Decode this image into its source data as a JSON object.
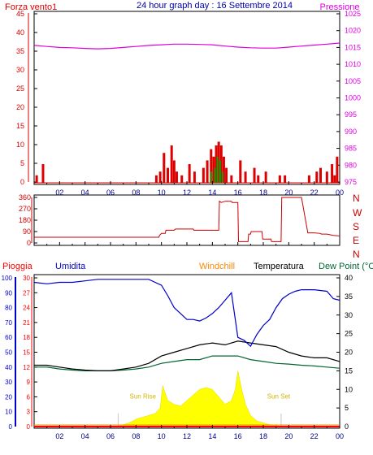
{
  "header": {
    "left": "Forza vento1",
    "title": "24 hour graph day : 16 Settembre 2014",
    "right": "Pressione"
  },
  "colors": {
    "wind": "#dd0000",
    "pressure": "#dd00dd",
    "direction": "#cc0000",
    "humidity": "#0000cc",
    "temperature": "#000000",
    "dewpoint": "#006633",
    "sun": "#ffff00",
    "sun_label": "#d4b400",
    "windchill": "#ff8800",
    "rain": "#ff0000",
    "frame": "#000000"
  },
  "x_ticks": [
    "02",
    "04",
    "06",
    "08",
    "10",
    "12",
    "14",
    "16",
    "18",
    "20",
    "22",
    "00"
  ],
  "chart_data": [
    {
      "type": "line",
      "name": "wind-pressure",
      "x_range_hours": [
        0,
        24
      ],
      "left_axis": {
        "label": "Forza vento1",
        "ticks": [
          "0",
          "5",
          "10",
          "15",
          "20",
          "25",
          "30",
          "35",
          "40",
          "45"
        ],
        "range": [
          0,
          45
        ]
      },
      "right_axis": {
        "label": "Pressione",
        "ticks": [
          "975",
          "980",
          "985",
          "990",
          "995",
          "1000",
          "1005",
          "1010",
          "1015",
          "1020",
          "1025"
        ],
        "range": [
          975,
          1025
        ]
      },
      "pressure": {
        "x": [
          0,
          1,
          2,
          3,
          4,
          5,
          6,
          7,
          8,
          9,
          10,
          11,
          12,
          13,
          14,
          15,
          16,
          17,
          18,
          19,
          20,
          21,
          22,
          23,
          24
        ],
        "y": [
          1015.6,
          1015.3,
          1015.0,
          1014.9,
          1014.7,
          1014.6,
          1014.7,
          1015.0,
          1015.3,
          1015.6,
          1015.8,
          1016.0,
          1016.0,
          1015.9,
          1015.8,
          1015.4,
          1015.1,
          1014.9,
          1014.8,
          1014.8,
          1015.1,
          1015.4,
          1015.7,
          1016.0,
          1016.3
        ]
      },
      "wind_bars": {
        "x": [
          0.2,
          0.7,
          9.6,
          9.9,
          10.2,
          10.5,
          10.8,
          11.0,
          11.2,
          11.6,
          12.2,
          12.6,
          13.3,
          13.6,
          13.9,
          14.1,
          14.3,
          14.5,
          14.7,
          14.9,
          15.1,
          15.5,
          16.2,
          16.6,
          17.3,
          17.6,
          18.2,
          19.3,
          19.7,
          21.6,
          22.2,
          22.5,
          23.0,
          23.4,
          23.6,
          23.8
        ],
        "y": [
          2,
          5,
          2,
          3,
          8,
          4,
          10,
          6,
          3,
          2,
          5,
          3,
          4,
          6,
          9,
          7,
          10,
          11,
          10,
          7,
          4,
          2,
          6,
          3,
          4,
          2,
          3,
          2,
          2,
          2,
          3,
          4,
          3,
          5,
          2,
          7
        ]
      },
      "gust_bars": {
        "x": [
          13.9,
          14.2,
          14.4,
          14.6,
          14.8
        ],
        "y": [
          3,
          4,
          7,
          6,
          3
        ]
      }
    },
    {
      "type": "line",
      "name": "wind-direction",
      "x_range_hours": [
        0,
        24
      ],
      "left_axis": {
        "ticks": [
          "0",
          "90",
          "180",
          "270",
          "360"
        ],
        "range": [
          0,
          360
        ]
      },
      "right_axis": {
        "ticks": [
          "N",
          "W",
          "S",
          "E",
          "N"
        ]
      },
      "direction": {
        "x": [
          0,
          9.8,
          9.85,
          10.0,
          10.3,
          10.35,
          11.0,
          11.1,
          12.5,
          12.55,
          12.8,
          12.85,
          14.5,
          14.55,
          14.7,
          15.0,
          15.5,
          15.55,
          16.0,
          16.05,
          16.8,
          16.85,
          17.0,
          17.05,
          17.9,
          17.95,
          18.6,
          18.65,
          19.4,
          19.45,
          21.0,
          21.5,
          22.0,
          22.5,
          22.55,
          23.0,
          23.5,
          24.0
        ],
        "y": [
          45,
          45,
          60,
          75,
          75,
          100,
          100,
          110,
          110,
          100,
          100,
          100,
          100,
          330,
          320,
          330,
          330,
          320,
          320,
          10,
          10,
          70,
          70,
          90,
          90,
          30,
          30,
          10,
          10,
          360,
          360,
          80,
          80,
          75,
          70,
          70,
          60,
          55
        ]
      }
    },
    {
      "type": "line",
      "name": "temperature-humidity",
      "x_range_hours": [
        0,
        24
      ],
      "legend": [
        "Pioggia",
        "Umidita",
        "Windchill",
        "Temperatura",
        "Dew Point (°C"
      ],
      "axis_humidity": {
        "label": "Umidita",
        "ticks": [
          "0",
          "10",
          "20",
          "30",
          "40",
          "50",
          "60",
          "70",
          "80",
          "90",
          "100"
        ],
        "range": [
          0,
          100
        ]
      },
      "axis_rain": {
        "label": "Pioggia",
        "ticks": [
          "0",
          "3",
          "6",
          "9",
          "12",
          "15",
          "18",
          "21",
          "24",
          "27",
          "30"
        ],
        "range": [
          0,
          30
        ]
      },
      "axis_temperature": {
        "ticks": [
          "0",
          "5",
          "10",
          "15",
          "20",
          "25",
          "30",
          "35",
          "40"
        ],
        "range": [
          0,
          40
        ]
      },
      "humidity": {
        "x": [
          0,
          1,
          2,
          3,
          4,
          5,
          6,
          7,
          8,
          9,
          10,
          10.5,
          11,
          11.5,
          12,
          12.5,
          13,
          13.5,
          14,
          14.5,
          15,
          15.5,
          16,
          16.5,
          17,
          17.5,
          18,
          18.5,
          19,
          19.5,
          20,
          20.5,
          21,
          22,
          23,
          23.5,
          24
        ],
        "y": [
          97,
          96,
          97,
          97,
          98,
          99,
          99,
          99,
          99,
          99,
          95,
          88,
          80,
          76,
          72,
          72,
          71,
          73,
          76,
          80,
          85,
          90,
          60,
          58,
          54,
          62,
          68,
          72,
          80,
          86,
          89,
          91,
          92,
          92,
          91,
          86,
          85
        ]
      },
      "temperature": {
        "x": [
          0,
          1,
          2,
          3,
          4,
          5,
          6,
          7,
          8,
          9,
          10,
          11,
          12,
          13,
          14,
          15,
          16,
          17,
          18,
          19,
          20,
          21,
          22,
          23,
          24
        ],
        "y": [
          16.5,
          16.5,
          16.0,
          15.5,
          15.2,
          15.0,
          15.0,
          15.5,
          16.0,
          17.0,
          19.0,
          20.0,
          21.0,
          22.0,
          22.5,
          22.0,
          23.0,
          22.5,
          22.0,
          21.5,
          20.0,
          19.0,
          18.5,
          18.5,
          17.5
        ]
      },
      "dewpoint": {
        "x": [
          0,
          1,
          2,
          3,
          4,
          5,
          6,
          7,
          8,
          9,
          10,
          11,
          12,
          13,
          14,
          15,
          16,
          17,
          18,
          19,
          20,
          21,
          22,
          23,
          24
        ],
        "y": [
          16.0,
          16.0,
          15.5,
          15.2,
          15.0,
          15.0,
          15.0,
          15.2,
          15.5,
          16.0,
          17.0,
          17.5,
          18.0,
          18.0,
          19.0,
          19.0,
          19.0,
          18.0,
          17.5,
          17.0,
          16.8,
          16.5,
          16.3,
          16.0,
          15.7
        ]
      },
      "sun": {
        "x": [
          6.5,
          7.0,
          7.5,
          8.0,
          8.5,
          9.0,
          9.5,
          9.9,
          10.1,
          10.5,
          11.0,
          11.5,
          12.0,
          12.5,
          13.0,
          13.5,
          14.0,
          14.5,
          15.0,
          15.5,
          15.8,
          16.0,
          16.3,
          16.6,
          17.0,
          17.5,
          18.0,
          18.5,
          19.0,
          19.5
        ],
        "y": [
          0,
          0.5,
          1.0,
          2.0,
          2.5,
          3.0,
          3.5,
          5.0,
          11.0,
          7.0,
          6.0,
          5.5,
          7.0,
          8.5,
          10.0,
          10.5,
          10.0,
          8.0,
          6.0,
          7.0,
          10.0,
          15.0,
          10.0,
          6.0,
          3.0,
          1.5,
          1.0,
          0.5,
          0.3,
          0
        ]
      },
      "sun_labels": {
        "sunrise": "Sun Rise",
        "sunset": "Sun Set"
      }
    }
  ]
}
